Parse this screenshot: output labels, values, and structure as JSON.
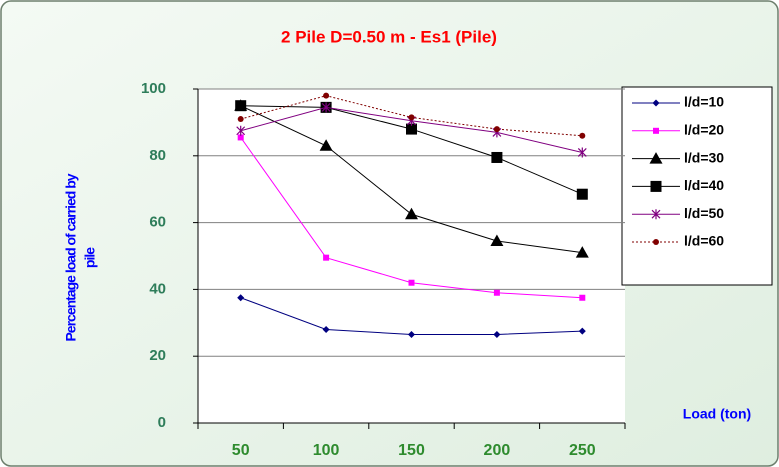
{
  "chart_data": {
    "type": "line",
    "title": "2 Pile D=0.50 m - Es1  (Pile)",
    "ylabel": [
      "Percentage  load of carried by",
      "pile"
    ],
    "xlabel": "Load (ton)",
    "categories": [
      "50",
      "100",
      "150",
      "200",
      "250"
    ],
    "ylim": [
      0,
      100
    ],
    "yticks": [
      0,
      20,
      40,
      60,
      80,
      100
    ],
    "grid": true,
    "series": [
      {
        "name": "l/d=10",
        "color": "#000080",
        "marker": "diamond",
        "values": [
          37.5,
          28,
          26.5,
          26.5,
          27.5
        ]
      },
      {
        "name": "l/d=20",
        "color": "#ff00ff",
        "marker": "square-small",
        "values": [
          85.5,
          49.5,
          42,
          39,
          37.5
        ]
      },
      {
        "name": "l/d=30",
        "color": "#000000",
        "marker": "triangle",
        "values": [
          95,
          83,
          62.5,
          54.5,
          51
        ]
      },
      {
        "name": "l/d=40",
        "color": "#000000",
        "marker": "square",
        "values": [
          95,
          94.5,
          88,
          79.5,
          68.5
        ]
      },
      {
        "name": "l/d=50",
        "color": "#800080",
        "marker": "star",
        "values": [
          87.5,
          94.5,
          90.5,
          87,
          81
        ]
      },
      {
        "name": "l/d=60",
        "color": "#800000",
        "marker": "circle",
        "dash": true,
        "values": [
          91,
          98,
          91.5,
          88,
          86
        ]
      }
    ]
  }
}
